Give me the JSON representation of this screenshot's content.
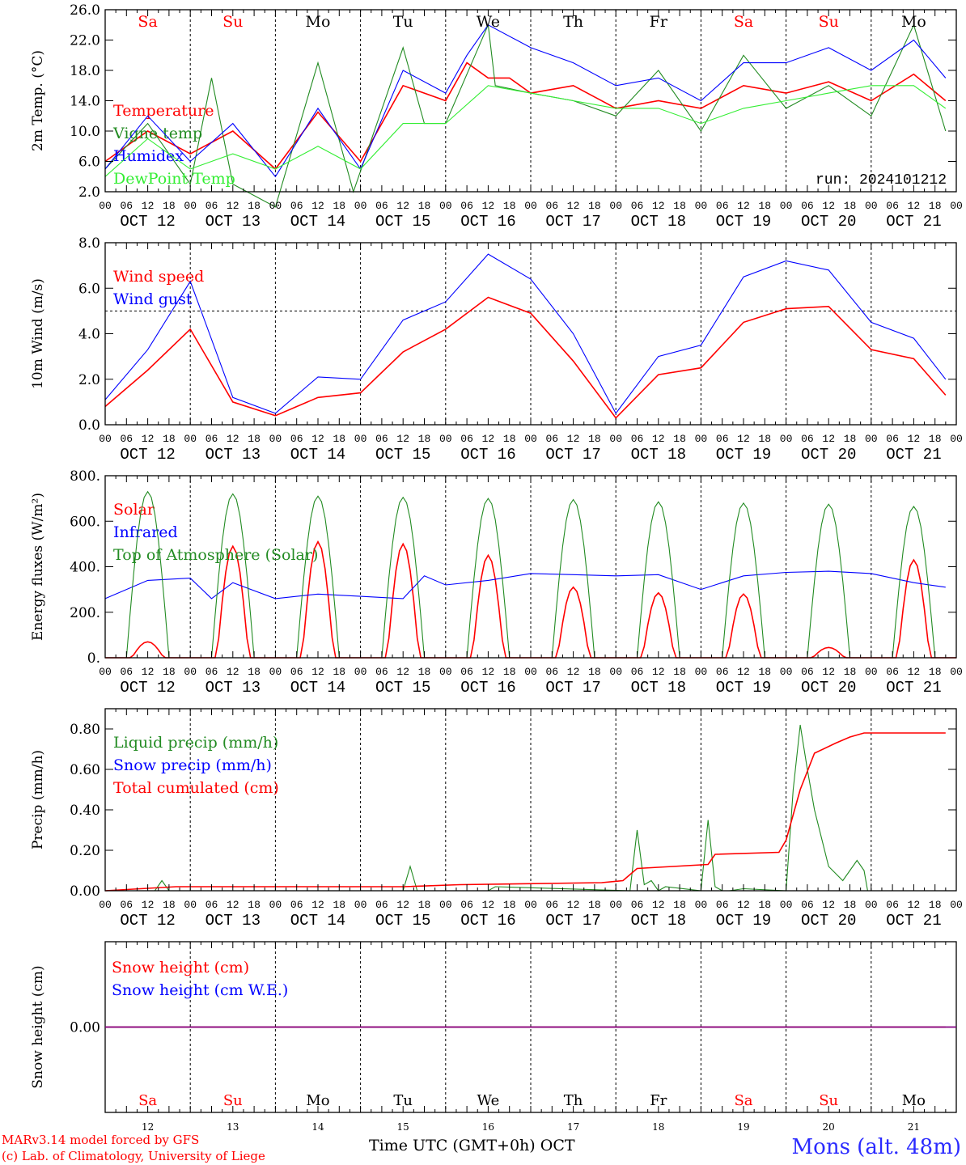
{
  "colors": {
    "red": "#ff0000",
    "blue": "#0000ff",
    "darkgreen": "#228b22",
    "lightgreen": "#33ee33",
    "purple": "#800080",
    "axis": "#000000",
    "weekend": "#ff0000"
  },
  "x_axis": {
    "hour_ticks": [
      "00",
      "06",
      "12",
      "18"
    ],
    "date_labels": [
      "OCT 12",
      "OCT 13",
      "OCT 14",
      "OCT 15",
      "OCT 16",
      "OCT 17",
      "OCT 18",
      "OCT 19",
      "OCT 20",
      "OCT 21"
    ],
    "top_days": [
      "Sa",
      "Su",
      "Mo",
      "Tu",
      "We",
      "Th",
      "Fr",
      "Sa",
      "Su",
      "Mo"
    ],
    "weekend_flags": [
      true,
      true,
      false,
      false,
      false,
      false,
      false,
      true,
      true,
      false
    ],
    "bottom_day_numbers": [
      "12",
      "13",
      "14",
      "15",
      "16",
      "17",
      "18",
      "19",
      "20",
      "21"
    ],
    "xlabel": "Time UTC (GMT+0h)",
    "month_label": "OCT"
  },
  "footer": {
    "model_line": "MARv3.14 model forced by GFS",
    "credit_line": "(c) Lab. of Climatology, University of Liege",
    "station": "Mons (alt. 48m)"
  },
  "chart_data": [
    {
      "type": "line",
      "id": "temp",
      "ylabel": "2m Temp. (°C)",
      "ylim": [
        2,
        26
      ],
      "ytick_labels": [
        "26.0",
        "22.0",
        "18.0",
        "14.0",
        "10.0",
        "6.0",
        "2.0"
      ],
      "ytick_values": [
        26,
        22,
        18,
        14,
        10,
        6,
        2
      ],
      "run_label": "run: 2024101212",
      "grid": "vertical dotted at day boundaries",
      "legend_position": "left",
      "series": [
        {
          "name": "Temperature",
          "color": "red",
          "x": [
            0,
            12,
            24,
            36,
            48,
            60,
            72,
            84,
            96,
            102,
            108,
            114,
            120,
            132,
            144,
            156,
            168,
            180,
            192,
            204,
            216,
            228,
            237
          ],
          "y": [
            6,
            10,
            7,
            10,
            5,
            12.5,
            6,
            16,
            14,
            19,
            17,
            17,
            15,
            16,
            13,
            14,
            13,
            16,
            15,
            16.5,
            14,
            17.5,
            14
          ]
        },
        {
          "name": "Vigne temp",
          "color": "darkgreen",
          "x": [
            0,
            12,
            24,
            30,
            36,
            48,
            60,
            70,
            84,
            90,
            96,
            108,
            110,
            120,
            132,
            144,
            156,
            168,
            180,
            192,
            204,
            216,
            228,
            237
          ],
          "y": [
            5,
            11,
            3,
            17,
            3,
            0,
            19,
            2,
            21,
            11,
            11,
            24,
            16,
            15,
            14,
            12,
            18,
            10,
            20,
            13,
            16,
            12,
            24,
            10
          ]
        },
        {
          "name": "Humidex",
          "color": "blue",
          "x": [
            0,
            12,
            24,
            36,
            48,
            60,
            72,
            84,
            96,
            102,
            108,
            120,
            132,
            144,
            156,
            168,
            180,
            192,
            204,
            216,
            228,
            237
          ],
          "y": [
            5,
            12,
            6,
            11,
            4,
            13,
            5,
            18,
            15,
            20,
            24,
            21,
            19,
            16,
            17,
            14,
            19,
            19,
            21,
            18,
            22,
            17
          ]
        },
        {
          "name": "DewPoint Temp",
          "color": "lightgreen",
          "x": [
            0,
            12,
            24,
            36,
            48,
            60,
            72,
            84,
            96,
            108,
            120,
            132,
            144,
            156,
            168,
            180,
            192,
            204,
            216,
            228,
            237
          ],
          "y": [
            4,
            9,
            5,
            7,
            5,
            8,
            5,
            11,
            11,
            16,
            15,
            14,
            13,
            13,
            11,
            13,
            14,
            15,
            16,
            16,
            13
          ]
        }
      ]
    },
    {
      "type": "line",
      "id": "wind",
      "ylabel": "10m Wind (m/s)",
      "ylim": [
        0,
        8
      ],
      "ytick_labels": [
        "8.0",
        "6.0",
        "4.0",
        "2.0",
        "0.0"
      ],
      "ytick_values": [
        8,
        6,
        4,
        2,
        0
      ],
      "reference_line": 5,
      "legend_position": "left",
      "series": [
        {
          "name": "Wind speed",
          "color": "red",
          "x": [
            0,
            12,
            24,
            36,
            48,
            60,
            72,
            84,
            96,
            108,
            120,
            132,
            144,
            156,
            168,
            180,
            192,
            204,
            216,
            228,
            237
          ],
          "y": [
            0.8,
            2.4,
            4.2,
            1,
            0.4,
            1.2,
            1.4,
            3.2,
            4.2,
            5.6,
            4.9,
            2.8,
            0.3,
            2.2,
            2.5,
            4.5,
            5.1,
            5.2,
            3.3,
            2.9,
            1.3
          ]
        },
        {
          "name": "Wind gust",
          "color": "blue",
          "x": [
            0,
            12,
            24,
            36,
            48,
            60,
            72,
            84,
            96,
            108,
            120,
            132,
            144,
            156,
            168,
            180,
            192,
            204,
            216,
            228,
            237
          ],
          "y": [
            1.1,
            3.3,
            6.3,
            1.2,
            0.5,
            2.1,
            2,
            4.6,
            5.4,
            7.5,
            6.4,
            4,
            0.5,
            3,
            3.5,
            6.5,
            7.2,
            6.8,
            4.5,
            3.8,
            2
          ]
        }
      ]
    },
    {
      "type": "line",
      "id": "energy",
      "ylabel": "Energy fluxes (W/m²)",
      "ylim": [
        0,
        800
      ],
      "ytick_labels": [
        "800.",
        "600.",
        "400.",
        "200.",
        "0."
      ],
      "ytick_values": [
        800,
        600,
        400,
        200,
        0
      ],
      "legend_position": "left",
      "series": [
        {
          "name": "Solar",
          "color": "red",
          "peaks": [
            70,
            490,
            510,
            500,
            450,
            310,
            285,
            280,
            45,
            430
          ]
        },
        {
          "name": "Infrared",
          "color": "blue",
          "x": [
            0,
            12,
            24,
            30,
            36,
            48,
            60,
            72,
            84,
            90,
            96,
            108,
            120,
            132,
            144,
            156,
            168,
            180,
            192,
            204,
            216,
            228,
            237
          ],
          "y": [
            260,
            340,
            350,
            260,
            330,
            260,
            280,
            270,
            260,
            360,
            320,
            340,
            370,
            365,
            360,
            365,
            300,
            360,
            375,
            380,
            370,
            330,
            310
          ]
        },
        {
          "name": "Top of Atmosphere (Solar)",
          "color": "darkgreen",
          "peaks": [
            730,
            720,
            710,
            705,
            700,
            695,
            685,
            680,
            675,
            665
          ]
        }
      ]
    },
    {
      "type": "line",
      "id": "precip",
      "ylabel": "Precip (mm/h)",
      "ylim": [
        0,
        0.9
      ],
      "ytick_labels": [
        "0.80",
        "0.60",
        "0.40",
        "0.20",
        "0.00"
      ],
      "ytick_values": [
        0.8,
        0.6,
        0.4,
        0.2,
        0
      ],
      "legend_position": "left",
      "series": [
        {
          "name": "Liquid precip (mm/h)",
          "color": "darkgreen",
          "x": [
            0,
            14,
            16,
            18,
            84,
            86,
            88,
            108,
            110,
            148,
            150,
            152,
            154,
            156,
            158,
            168,
            170,
            172,
            174,
            176,
            180,
            192,
            194,
            196,
            198,
            200,
            204,
            208,
            212,
            214,
            215,
            237
          ],
          "y": [
            0,
            0,
            0.05,
            0,
            0,
            0.12,
            0,
            0,
            0.02,
            0,
            0.3,
            0.03,
            0.05,
            0,
            0.02,
            0,
            0.35,
            0.02,
            0,
            0,
            0.01,
            0,
            0.5,
            0.82,
            0.6,
            0.4,
            0.12,
            0.05,
            0.15,
            0.1,
            0,
            0
          ]
        },
        {
          "name": "Snow precip (mm/h)",
          "color": "blue",
          "x": [
            0,
            237
          ],
          "y": [
            0,
            0
          ]
        },
        {
          "name": "Total cumulated (cm)",
          "color": "red",
          "x": [
            0,
            20,
            84,
            100,
            140,
            146,
            150,
            170,
            172,
            190,
            192,
            196,
            200,
            206,
            210,
            214,
            237
          ],
          "y": [
            0,
            0.02,
            0.02,
            0.03,
            0.04,
            0.05,
            0.11,
            0.13,
            0.18,
            0.19,
            0.25,
            0.5,
            0.68,
            0.73,
            0.76,
            0.78,
            0.78
          ]
        }
      ]
    },
    {
      "type": "line",
      "id": "snow",
      "ylabel": "Snow height (cm)",
      "ylim": [
        -1,
        1
      ],
      "ytick_labels": [
        "0.00"
      ],
      "ytick_values": [
        0
      ],
      "legend_position": "left",
      "series": [
        {
          "name": "Snow height (cm)",
          "color": "red",
          "x": [
            0,
            237
          ],
          "y": [
            0,
            0
          ]
        },
        {
          "name": "Snow height (cm W.E.)",
          "color": "blue",
          "x": [
            0,
            237
          ],
          "y": [
            0,
            0
          ]
        }
      ]
    }
  ]
}
